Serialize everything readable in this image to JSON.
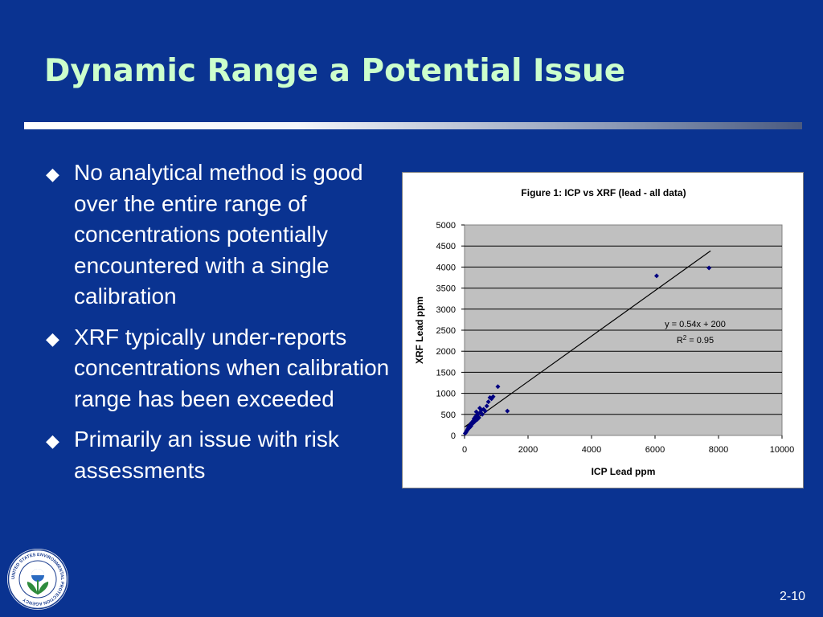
{
  "slide": {
    "title": "Dynamic Range a Potential Issue",
    "bullets": [
      "No analytical method is good over the entire range of concentrations potentially encountered with a single calibration",
      "XRF typically under-reports concentrations when calibration range has been exceeded",
      "Primarily an issue with risk assessments"
    ],
    "page_number": "2-10",
    "logo_text": "UNITED STATES ENVIRONMENTAL PROTECTION AGENCY"
  },
  "colors": {
    "background": "#0a3391",
    "title": "#ccffcc",
    "text": "#ffffff",
    "plot_area": "#c0c0c0",
    "marker": "#000080"
  },
  "chart_data": {
    "type": "scatter",
    "title": "Figure 1: ICP vs XRF (lead - all data)",
    "xlabel": "ICP Lead ppm",
    "ylabel": "XRF Lead ppm",
    "xlim": [
      0,
      10000
    ],
    "ylim": [
      0,
      5000
    ],
    "x_ticks": [
      "0",
      "2000",
      "4000",
      "6000",
      "8000",
      "10000"
    ],
    "y_ticks": [
      "0",
      "500",
      "1000",
      "1500",
      "2000",
      "2500",
      "3000",
      "3500",
      "4000",
      "4500",
      "5000"
    ],
    "grid": "horizontal",
    "legend": "none",
    "series": [
      {
        "marker": "diamond",
        "x": [
          20,
          50,
          80,
          100,
          120,
          150,
          180,
          200,
          220,
          250,
          280,
          300,
          320,
          350,
          370,
          400,
          420,
          450,
          480,
          500,
          530,
          560,
          600,
          650,
          700,
          750,
          800,
          850,
          900,
          1050,
          1350,
          6050,
          7700
        ],
        "y": [
          50,
          80,
          120,
          150,
          200,
          180,
          250,
          220,
          300,
          280,
          350,
          400,
          330,
          450,
          560,
          380,
          500,
          420,
          650,
          550,
          600,
          500,
          620,
          580,
          700,
          800,
          900,
          870,
          920,
          1160,
          580,
          3790,
          3980
        ]
      }
    ],
    "trendline": {
      "x": [
        0,
        7750
      ],
      "y": [
        200,
        4385
      ],
      "equation": "y = 0.54x + 200",
      "r2_label": "R",
      "r2_exponent": "2",
      "r2_value": " = 0.95"
    }
  }
}
